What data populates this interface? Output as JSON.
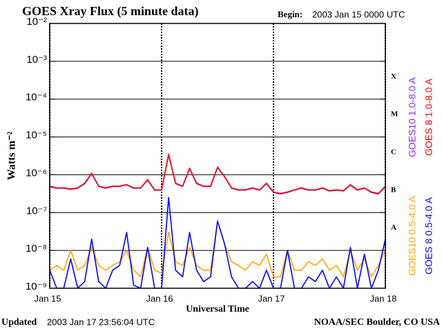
{
  "chart_data": {
    "type": "line",
    "title": "GOES Xray Flux (5 minute data)",
    "begin_label": "Begin:",
    "begin": "2003 Jan 15 0000 UTC",
    "xlabel": "Universal Time",
    "ylabel": "Watts m⁻²",
    "updated_label": "Updated",
    "updated": "2003 Jan 17 23:56:04 UTC",
    "credit": "NOAA/SEC Boulder, CO USA",
    "log_y": true,
    "grid": true,
    "flare_classes": [
      "X",
      "M",
      "C",
      "B",
      "A"
    ],
    "xlim": [
      15,
      18
    ],
    "xticks": [
      {
        "value": 15,
        "label": "Jan 15"
      },
      {
        "value": 16,
        "label": "Jan 16"
      },
      {
        "value": 17,
        "label": "Jan 17"
      },
      {
        "value": 18,
        "label": "Jan 18"
      }
    ],
    "ylim": [
      1e-09,
      0.01
    ],
    "yticks": [
      {
        "value": 1e-09,
        "label": "10⁻⁹"
      },
      {
        "value": 1e-08,
        "label": "10⁻⁸"
      },
      {
        "value": 1e-07,
        "label": "10⁻⁷"
      },
      {
        "value": 1e-06,
        "label": "10⁻⁶"
      },
      {
        "value": 1e-05,
        "label": "10⁻⁵"
      },
      {
        "value": 0.0001,
        "label": "10⁻⁴"
      },
      {
        "value": 0.001,
        "label": "10⁻³"
      },
      {
        "value": 0.01,
        "label": "10⁻²"
      }
    ],
    "x": [
      15,
      15.0625,
      15.125,
      15.1875,
      15.25,
      15.3125,
      15.375,
      15.4375,
      15.5,
      15.5625,
      15.625,
      15.6875,
      15.75,
      15.8125,
      15.875,
      15.9375,
      16,
      16.0625,
      16.125,
      16.1875,
      16.25,
      16.3125,
      16.375,
      16.4375,
      16.5,
      16.5625,
      16.625,
      16.6875,
      16.75,
      16.8125,
      16.875,
      16.9375,
      17,
      17.0625,
      17.125,
      17.1875,
      17.25,
      17.3125,
      17.375,
      17.4375,
      17.5,
      17.5625,
      17.625,
      17.6875,
      17.75,
      17.8125,
      17.875,
      17.9375,
      18
    ],
    "series": [
      {
        "name": "GOES10 1.0-8.0 A",
        "color": "#8a2be2",
        "legend_column": 0,
        "values": [
          4.8e-07,
          4.4e-07,
          4.4e-07,
          4.1e-07,
          4.4e-07,
          5.8e-07,
          1.05e-06,
          4.9e-07,
          4.4e-07,
          4.9e-07,
          4.9e-07,
          5.4e-07,
          4.4e-07,
          4.4e-07,
          7.2e-07,
          3.9e-07,
          3.9e-07,
          3.3e-06,
          5.8e-07,
          4.9e-07,
          1.45e-06,
          5.8e-07,
          4.9e-07,
          4.9e-07,
          1.55e-06,
          8.8e-07,
          4.4e-07,
          3.9e-07,
          3.9e-07,
          4.4e-07,
          3.9e-07,
          5.8e-07,
          3.4e-07,
          3.1e-07,
          3.4e-07,
          3.9e-07,
          4.4e-07,
          3.9e-07,
          3.9e-07,
          4.4e-07,
          3.7e-07,
          3.9e-07,
          3.7e-07,
          5.3e-07,
          3.9e-07,
          4.4e-07,
          3.4e-07,
          3.1e-07,
          4.8e-07
        ]
      },
      {
        "name": "GOES 8 1.0-8.0 A",
        "color": "#ff0000",
        "legend_column": 1,
        "values": [
          5e-07,
          4.5e-07,
          4.5e-07,
          4.2e-07,
          4.5e-07,
          6e-07,
          1.1e-06,
          5e-07,
          4.5e-07,
          5e-07,
          5e-07,
          5.5e-07,
          4.5e-07,
          4.5e-07,
          7.5e-07,
          4e-07,
          4e-07,
          3.5e-06,
          6e-07,
          5e-07,
          1.5e-06,
          6e-07,
          5e-07,
          5e-07,
          1.6e-06,
          9e-07,
          4.5e-07,
          4e-07,
          4e-07,
          4.5e-07,
          4e-07,
          6e-07,
          3.5e-07,
          3.2e-07,
          3.5e-07,
          4e-07,
          4.5e-07,
          4e-07,
          4e-07,
          4.5e-07,
          3.8e-07,
          4e-07,
          3.8e-07,
          5.5e-07,
          4e-07,
          4.5e-07,
          3.5e-07,
          3.2e-07,
          5e-07
        ]
      },
      {
        "name": "GOES10 0.5-4.0 A",
        "color": "#ffa500",
        "legend_column": 0,
        "values": [
          3e-09,
          4e-09,
          3e-09,
          1e-08,
          3e-09,
          4e-09,
          1.2e-08,
          4e-09,
          3e-09,
          4e-09,
          5e-09,
          1e-08,
          3e-09,
          2e-09,
          1.2e-08,
          3e-09,
          2.5e-09,
          3e-08,
          5e-09,
          4e-09,
          1.2e-08,
          4e-09,
          3e-09,
          3e-09,
          6e-08,
          1.5e-08,
          5e-09,
          4e-09,
          3e-09,
          5e-09,
          4e-09,
          8e-09,
          2e-09,
          2e-09,
          1e-08,
          3e-09,
          3e-09,
          5e-09,
          4e-09,
          6e-09,
          3e-09,
          4e-09,
          2e-09,
          1e-08,
          3e-09,
          6e-09,
          2e-09,
          4e-09,
          1e-08
        ]
      },
      {
        "name": "GOES 8 0.5-4.0 A",
        "color": "#0000ff",
        "legend_column": 1,
        "values": [
          3e-09,
          1e-09,
          1e-09,
          6e-09,
          1e-09,
          1.5e-09,
          2e-08,
          1.5e-09,
          1e-09,
          3e-09,
          4e-09,
          3e-08,
          1.2e-09,
          1e-09,
          1.2e-08,
          1e-09,
          1e-09,
          2.5e-07,
          3e-09,
          2e-09,
          3e-08,
          3e-09,
          1.5e-09,
          2e-09,
          6e-08,
          1.5e-08,
          2e-09,
          1e-09,
          1e-09,
          1.5e-09,
          1e-09,
          3e-09,
          1e-09,
          1e-09,
          1e-08,
          1e-09,
          1e-09,
          2e-09,
          1.5e-09,
          3e-09,
          1e-09,
          2e-09,
          1e-09,
          1.2e-08,
          1e-09,
          8e-09,
          1e-09,
          3e-09,
          2e-08
        ]
      }
    ]
  }
}
